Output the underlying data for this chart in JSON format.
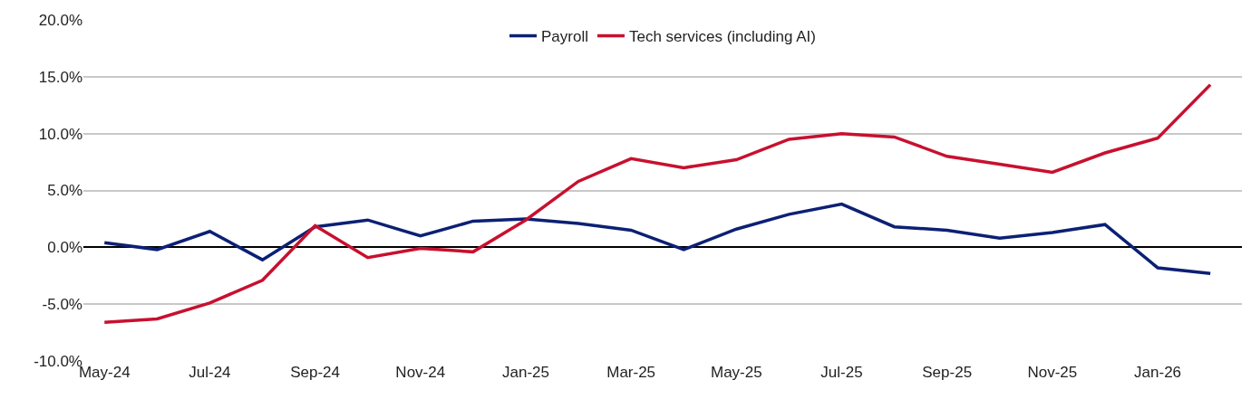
{
  "chart_data": {
    "type": "line",
    "categories": [
      "May-24",
      null,
      "Jul-24",
      null,
      "Sep-24",
      null,
      "Nov-24",
      null,
      "Jan-25",
      null,
      "Mar-25",
      null,
      "May-25",
      null,
      "Jul-25",
      null,
      "Sep-25",
      null,
      "Nov-25",
      null,
      "Jan-26",
      null
    ],
    "series": [
      {
        "name": "Payroll",
        "color": "#0c2074",
        "values": [
          0.4,
          -0.2,
          1.4,
          -1.1,
          1.8,
          2.4,
          1.0,
          2.3,
          2.5,
          2.1,
          1.5,
          -0.2,
          1.6,
          2.9,
          3.8,
          1.8,
          1.5,
          0.8,
          1.3,
          2.0,
          -1.8,
          -2.3
        ]
      },
      {
        "name": "Tech services (including AI)",
        "color": "#c8102e",
        "values": [
          -6.6,
          -6.3,
          -4.9,
          -2.9,
          1.9,
          -0.9,
          -0.1,
          -0.4,
          2.4,
          5.8,
          7.8,
          7.0,
          7.7,
          9.5,
          10.0,
          9.7,
          8.0,
          7.3,
          6.6,
          8.3,
          9.6,
          14.3
        ]
      }
    ],
    "ylim": [
      -10,
      20
    ],
    "yticks": [
      {
        "value": -10,
        "label": "-10.0%"
      },
      {
        "value": -5,
        "label": "-5.0%"
      },
      {
        "value": 0,
        "label": "0.0%"
      },
      {
        "value": 5,
        "label": "5.0%"
      },
      {
        "value": 10,
        "label": "10.0%"
      },
      {
        "value": 15,
        "label": "15.0%"
      },
      {
        "value": 20,
        "label": "20.0%"
      }
    ],
    "grid": "y",
    "legend": "top",
    "marker": "none",
    "line_style": "solid"
  }
}
